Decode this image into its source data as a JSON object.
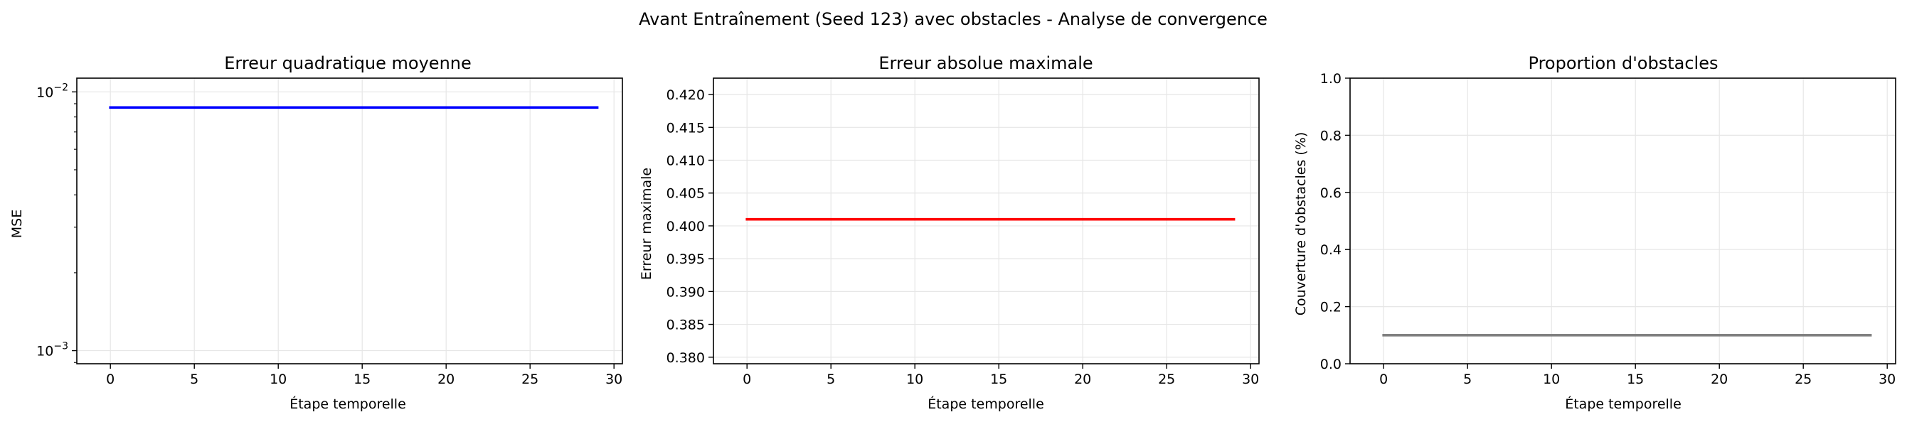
{
  "figure": {
    "suptitle": "Avant Entraînement (Seed 123) avec obstacles - Analyse de convergence"
  },
  "chart_data": [
    {
      "type": "line",
      "title": "Erreur quadratique moyenne",
      "xlabel": "Étape temporelle",
      "ylabel": "MSE",
      "yscale": "log",
      "xlim": [
        -2,
        30.5
      ],
      "ylim": [
        0.00089,
        0.0113
      ],
      "xticks": [
        0,
        5,
        10,
        15,
        20,
        25,
        30
      ],
      "xtick_labels": [
        "0",
        "5",
        "10",
        "15",
        "20",
        "25",
        "30"
      ],
      "yticks": [
        0.001,
        0.01
      ],
      "ytick_base": "10",
      "ytick_exponents": [
        "−3",
        "−2"
      ],
      "grid": true,
      "series": [
        {
          "color": "#0000ff",
          "x": [
            0,
            29
          ],
          "y": [
            0.0087,
            0.0087
          ]
        }
      ]
    },
    {
      "type": "line",
      "title": "Erreur absolue maximale",
      "xlabel": "Étape temporelle",
      "ylabel": "Erreur maximale",
      "yscale": "linear",
      "xlim": [
        -2,
        30.5
      ],
      "ylim": [
        0.379,
        0.4225
      ],
      "xticks": [
        0,
        5,
        10,
        15,
        20,
        25,
        30
      ],
      "xtick_labels": [
        "0",
        "5",
        "10",
        "15",
        "20",
        "25",
        "30"
      ],
      "yticks": [
        0.38,
        0.385,
        0.39,
        0.395,
        0.4,
        0.405,
        0.41,
        0.415,
        0.42
      ],
      "ytick_labels": [
        "0.380",
        "0.385",
        "0.390",
        "0.395",
        "0.400",
        "0.405",
        "0.410",
        "0.415",
        "0.420"
      ],
      "grid": true,
      "series": [
        {
          "color": "#ff0000",
          "x": [
            0,
            29
          ],
          "y": [
            0.401,
            0.401
          ]
        }
      ]
    },
    {
      "type": "line",
      "title": "Proportion d'obstacles",
      "xlabel": "Étape temporelle",
      "ylabel": "Couverture d'obstacles (%)",
      "yscale": "linear",
      "xlim": [
        -2,
        30.5
      ],
      "ylim": [
        0,
        1
      ],
      "xticks": [
        0,
        5,
        10,
        15,
        20,
        25,
        30
      ],
      "xtick_labels": [
        "0",
        "5",
        "10",
        "15",
        "20",
        "25",
        "30"
      ],
      "yticks": [
        0,
        0.2,
        0.4,
        0.6,
        0.8,
        1.0
      ],
      "ytick_labels": [
        "0.0",
        "0.2",
        "0.4",
        "0.6",
        "0.8",
        "1.0"
      ],
      "grid": true,
      "series": [
        {
          "color": "#808080",
          "x": [
            0,
            29
          ],
          "y": [
            0.1,
            0.1
          ]
        }
      ]
    }
  ]
}
